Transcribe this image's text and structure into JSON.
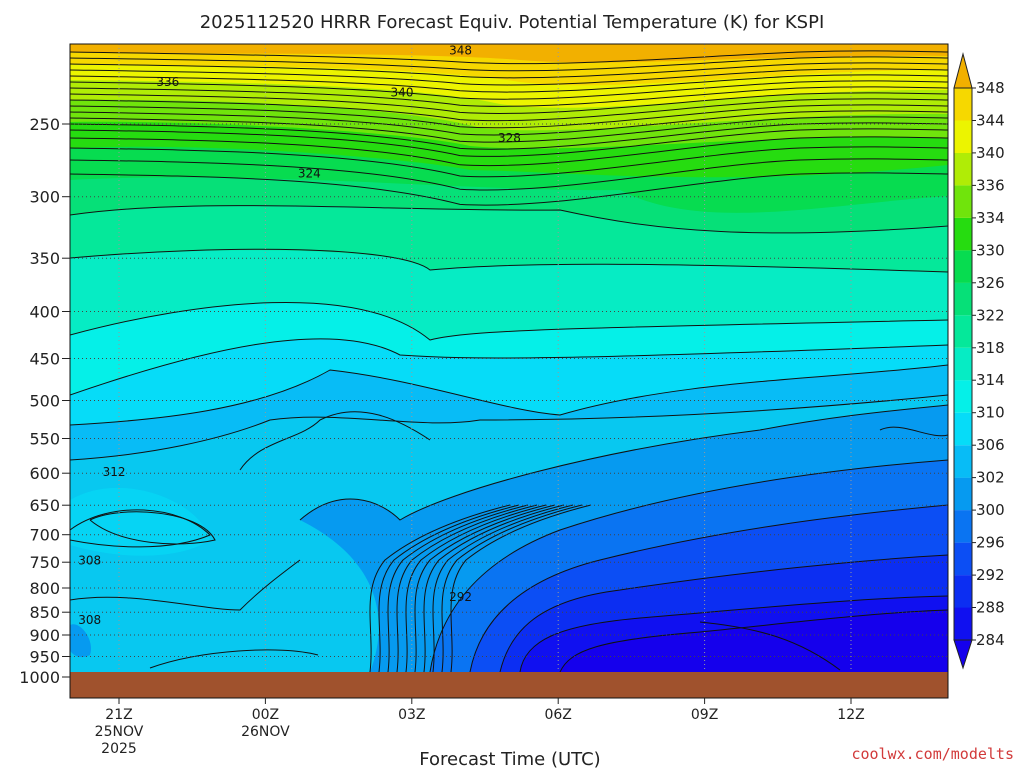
{
  "title": "2025112520 HRRR Forecast Equiv. Potential Temperature (K) for KSPI",
  "credit": "coolwx.com/modelts",
  "chart_data": {
    "type": "heatmap",
    "title": "2025112520 HRRR Forecast Equiv. Potential Temperature (K) for KSPI",
    "xlabel": "Forecast Time (UTC)",
    "ylabel": "",
    "x_ticks": [
      {
        "label": "21Z",
        "date": "25NOV",
        "year": "2025"
      },
      {
        "label": "00Z",
        "date": "26NOV",
        "year": ""
      },
      {
        "label": "03Z",
        "date": "",
        "year": ""
      },
      {
        "label": "06Z",
        "date": "",
        "year": ""
      },
      {
        "label": "09Z",
        "date": "",
        "year": ""
      },
      {
        "label": "12Z",
        "date": "",
        "year": ""
      }
    ],
    "y_axis": "pressure (hPa), reversed",
    "y_ticks": [
      250,
      300,
      350,
      400,
      450,
      500,
      550,
      600,
      650,
      700,
      750,
      800,
      850,
      900,
      950,
      1000
    ],
    "ylim": [
      1000,
      200
    ],
    "grid": true,
    "colorbar_levels": [
      284,
      288,
      292,
      296,
      300,
      302,
      306,
      310,
      314,
      318,
      322,
      326,
      330,
      334,
      336,
      340,
      344,
      348
    ],
    "colorbar_colors": [
      "#1500ec",
      "#1010f0",
      "#0c2ef2",
      "#0c4ef4",
      "#0a74f2",
      "#069af0",
      "#08bcf6",
      "#06dcf8",
      "#05f0e8",
      "#06ecc4",
      "#05e89a",
      "#06e078",
      "#07dc50",
      "#26dc10",
      "#70e40c",
      "#b0ec06",
      "#ecf400",
      "#f6d800",
      "#f2b000"
    ],
    "contour_labels": [
      {
        "value": "348",
        "hour": 6.0,
        "pressure": 208
      },
      {
        "value": "336",
        "hour": 0.0,
        "pressure": 225
      },
      {
        "value": "340",
        "hour": 4.8,
        "pressure": 231
      },
      {
        "value": "328",
        "hour": 7.0,
        "pressure": 259
      },
      {
        "value": "324",
        "hour": 2.9,
        "pressure": 283
      },
      {
        "value": "312",
        "hour": -1.1,
        "pressure": 598
      },
      {
        "value": "308",
        "hour": -1.6,
        "pressure": 747
      },
      {
        "value": "308",
        "hour": -1.6,
        "pressure": 867
      },
      {
        "value": "292",
        "hour": 6.0,
        "pressure": 818
      }
    ],
    "surface": "ground below 1000 hPa"
  }
}
